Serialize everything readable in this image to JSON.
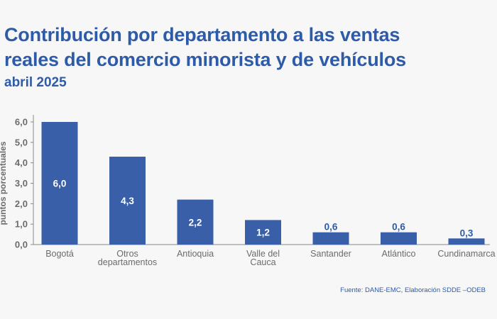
{
  "title_lines": [
    "Contribución por departamento a las ventas",
    "reales del comercio minorista y de vehículos"
  ],
  "subtitle": "abril 2025",
  "source": "Fuente: DANE-EMC, Elaboración SDDE –ODEB",
  "colors": {
    "bar": "#3a5fa9",
    "text": "#2e5ba8",
    "axis": "#888888"
  },
  "chart_data": {
    "type": "bar",
    "categories": [
      [
        "Bogotá"
      ],
      [
        "Otros",
        "departamentos"
      ],
      [
        "Antioquia"
      ],
      [
        "Valle del",
        "Cauca"
      ],
      [
        "Santander"
      ],
      [
        "Atlántico"
      ],
      [
        "Cundinamarca"
      ]
    ],
    "values": [
      6.0,
      4.3,
      2.2,
      1.2,
      0.6,
      0.6,
      0.3
    ],
    "value_labels": [
      "6,0",
      "4,3",
      "2,2",
      "1,2",
      "0,6",
      "0,6",
      "0,3"
    ],
    "ylabel": "puntos porcentuales",
    "ylim": [
      0,
      6.0
    ],
    "yticks": [
      0,
      1,
      2,
      3,
      4,
      5,
      6
    ],
    "ytick_labels": [
      "0,0",
      "1,0",
      "2,0",
      "3,0",
      "4,0",
      "5,0",
      "6,0"
    ],
    "grid": false,
    "legend": "none"
  }
}
